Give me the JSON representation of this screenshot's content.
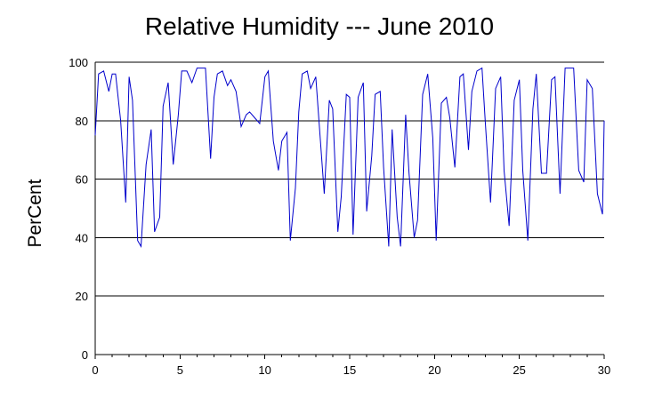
{
  "chart_data": {
    "type": "line",
    "title": "Relative Humidity --- June 2010",
    "xlabel": "",
    "ylabel": "PerCent",
    "xlim": [
      0,
      30
    ],
    "ylim": [
      0,
      100
    ],
    "x_ticks": [
      0,
      5,
      10,
      15,
      20,
      25,
      30
    ],
    "y_ticks": [
      0,
      20,
      40,
      60,
      80,
      100
    ],
    "grid": "horizontal",
    "line_color": "#0000cc",
    "series": [
      {
        "x": [
          0.0,
          0.2,
          0.5,
          0.8,
          1.0,
          1.2,
          1.5,
          1.8,
          2.0,
          2.2,
          2.5,
          2.7,
          3.0,
          3.3,
          3.5,
          3.8,
          4.0,
          4.3,
          4.6,
          4.9,
          5.1,
          5.4,
          5.7,
          6.0,
          6.2,
          6.5,
          6.8,
          7.0,
          7.2,
          7.5,
          7.8,
          8.0,
          8.3,
          8.6,
          8.9,
          9.1,
          9.4,
          9.7,
          10.0,
          10.2,
          10.5,
          10.8,
          11.0,
          11.3,
          11.5,
          11.8,
          12.0,
          12.2,
          12.5,
          12.7,
          13.0,
          13.3,
          13.5,
          13.8,
          14.0,
          14.3,
          14.5,
          14.8,
          15.0,
          15.2,
          15.5,
          15.8,
          16.0,
          16.3,
          16.5,
          16.8,
          17.0,
          17.3,
          17.5,
          17.8,
          18.0,
          18.3,
          18.5,
          18.8,
          19.0,
          19.3,
          19.6,
          19.9,
          20.1,
          20.4,
          20.7,
          20.9,
          21.2,
          21.5,
          21.7,
          22.0,
          22.2,
          22.5,
          22.8,
          23.0,
          23.3,
          23.6,
          23.9,
          24.1,
          24.4,
          24.7,
          25.0,
          25.2,
          25.5,
          25.8,
          26.0,
          26.3,
          26.6,
          26.9,
          27.1,
          27.4,
          27.7,
          28.0,
          28.2,
          28.5,
          28.8,
          29.0,
          29.3,
          29.6,
          29.9,
          30.0
        ],
        "values": [
          75,
          96,
          97,
          90,
          96,
          96,
          80,
          52,
          95,
          87,
          39,
          37,
          65,
          77,
          42,
          47,
          85,
          93,
          65,
          82,
          97,
          97,
          93,
          98,
          98,
          98,
          67,
          88,
          96,
          97,
          92,
          94,
          90,
          78,
          82,
          83,
          81,
          79,
          95,
          97,
          73,
          63,
          73,
          76,
          39,
          57,
          83,
          96,
          97,
          91,
          95,
          71,
          55,
          87,
          84,
          42,
          54,
          89,
          88,
          41,
          88,
          93,
          49,
          68,
          89,
          90,
          64,
          37,
          77,
          47,
          37,
          82,
          62,
          40,
          46,
          89,
          96,
          74,
          39,
          86,
          88,
          81,
          64,
          95,
          96,
          70,
          90,
          97,
          98,
          79,
          52,
          91,
          95,
          63,
          44,
          87,
          94,
          63,
          39,
          84,
          96,
          62,
          62,
          94,
          95,
          55,
          98,
          98,
          98,
          63,
          59,
          94,
          91,
          55,
          48,
          80
        ]
      }
    ]
  }
}
